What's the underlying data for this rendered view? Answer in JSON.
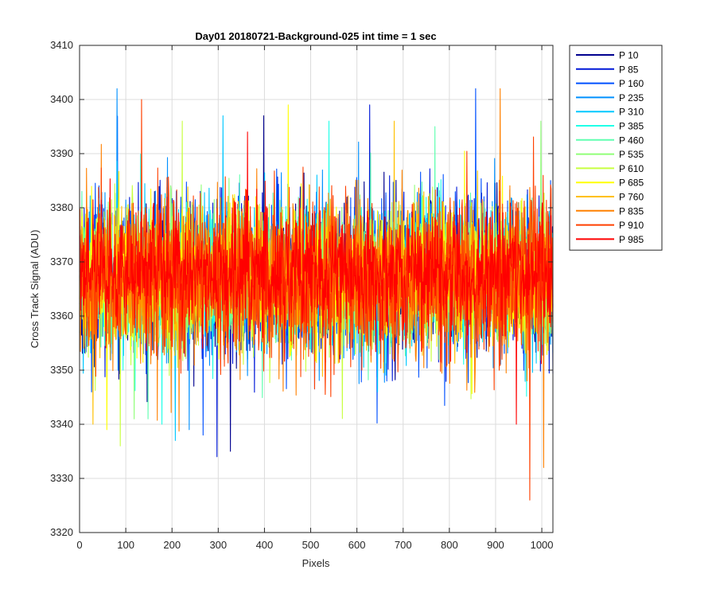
{
  "chart_data": {
    "type": "line",
    "title": "Day01 20180721-Background-025 int time = 1 sec",
    "xlabel": "Pixels",
    "ylabel": "Cross Track Signal (ADU)",
    "xlim": [
      0,
      1024
    ],
    "ylim": [
      3320,
      3410
    ],
    "x_ticks": [
      "0",
      "100",
      "200",
      "300",
      "400",
      "500",
      "600",
      "700",
      "800",
      "900",
      "1000"
    ],
    "y_ticks": [
      "3320",
      "3330",
      "3340",
      "3350",
      "3360",
      "3370",
      "3380",
      "3390",
      "3400",
      "3410"
    ],
    "grid": true,
    "legend_position": "outside-top-right",
    "n_points": 1024,
    "series": [
      {
        "name": "P 10",
        "color": "#00008f",
        "mean": 3367,
        "min": 3335,
        "max": 3397
      },
      {
        "name": "P 85",
        "color": "#0018d8",
        "mean": 3367,
        "min": 3334,
        "max": 3399
      },
      {
        "name": "P 160",
        "color": "#0050ff",
        "mean": 3367,
        "min": 3338,
        "max": 3402
      },
      {
        "name": "P 235",
        "color": "#0090ff",
        "mean": 3367,
        "min": 3339,
        "max": 3402
      },
      {
        "name": "P 310",
        "color": "#00c8ff",
        "mean": 3367,
        "min": 3337,
        "max": 3397
      },
      {
        "name": "P 385",
        "color": "#20ffe8",
        "mean": 3367,
        "min": 3340,
        "max": 3396
      },
      {
        "name": "P 460",
        "color": "#60ffb0",
        "mean": 3367,
        "min": 3341,
        "max": 3395
      },
      {
        "name": "P 535",
        "color": "#90ff78",
        "mean": 3367,
        "min": 3341,
        "max": 3396
      },
      {
        "name": "P 610",
        "color": "#c8ff40",
        "mean": 3367,
        "min": 3336,
        "max": 3396
      },
      {
        "name": "P 685",
        "color": "#ffff00",
        "mean": 3367,
        "min": 3339,
        "max": 3399
      },
      {
        "name": "P 760",
        "color": "#ffc000",
        "mean": 3367,
        "min": 3340,
        "max": 3396
      },
      {
        "name": "P 835",
        "color": "#ff8000",
        "mean": 3367,
        "min": 3332,
        "max": 3402
      },
      {
        "name": "P 910",
        "color": "#ff4000",
        "mean": 3367,
        "min": 3326,
        "max": 3400
      },
      {
        "name": "P 985",
        "color": "#ff0000",
        "mean": 3368,
        "min": 3340,
        "max": 3394
      }
    ]
  }
}
